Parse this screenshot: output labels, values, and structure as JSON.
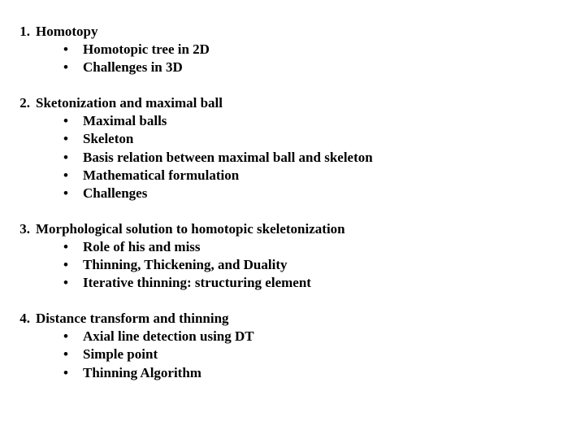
{
  "text_color": "#000000",
  "background_color": "#ffffff",
  "font_family": "Times New Roman",
  "font_size_pt": 13,
  "font_weight": "bold",
  "sections": [
    {
      "number": "1.",
      "title": "Homotopy",
      "items": [
        "Homotopic tree in 2D",
        "Challenges in 3D"
      ]
    },
    {
      "number": "2.",
      "title": "Sketonization and maximal ball",
      "items": [
        "Maximal balls",
        "Skeleton",
        "Basis relation between maximal ball and skeleton",
        "Mathematical formulation",
        "Challenges"
      ]
    },
    {
      "number": "3.",
      "title": "Morphological solution to homotopic skeletonization",
      "items": [
        "Role of his and miss",
        "Thinning, Thickening, and Duality",
        "Iterative thinning: structuring element"
      ]
    },
    {
      "number": "4.",
      "title": "Distance transform and thinning",
      "items": [
        "Axial line detection using DT",
        "Simple point",
        "Thinning Algorithm"
      ]
    }
  ]
}
